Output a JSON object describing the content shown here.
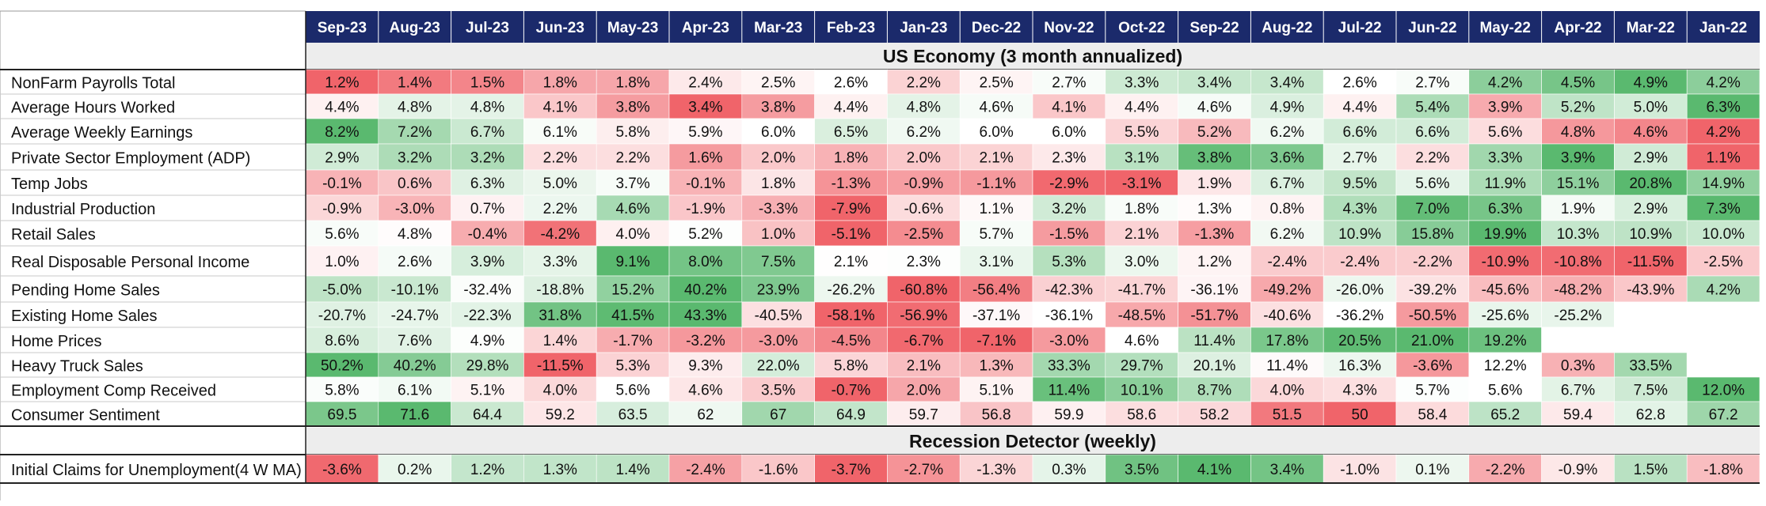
{
  "chart_data": {
    "type": "heatmap",
    "columns": [
      "Sep-23",
      "Aug-23",
      "Jul-23",
      "Jun-23",
      "May-23",
      "Apr-23",
      "Mar-23",
      "Feb-23",
      "Jan-23",
      "Dec-22",
      "Nov-22",
      "Oct-22",
      "Sep-22",
      "Aug-22",
      "Jul-22",
      "Jun-22",
      "May-22",
      "Apr-22",
      "Mar-22",
      "Jan-22"
    ],
    "sections": [
      {
        "title": "US Economy (3 month annualized)",
        "rows": [
          {
            "label": "NonFarm Payrolls Total",
            "values": [
              "1.2%",
              "1.4%",
              "1.5%",
              "1.8%",
              "1.8%",
              "2.4%",
              "2.5%",
              "2.6%",
              "2.2%",
              "2.5%",
              "2.7%",
              "3.3%",
              "3.4%",
              "3.4%",
              "2.6%",
              "2.7%",
              "4.2%",
              "4.5%",
              "4.9%",
              "4.2%"
            ]
          },
          {
            "label": "Average Hours Worked",
            "values": [
              "4.4%",
              "4.8%",
              "4.8%",
              "4.1%",
              "3.8%",
              "3.4%",
              "3.8%",
              "4.4%",
              "4.8%",
              "4.6%",
              "4.1%",
              "4.4%",
              "4.6%",
              "4.9%",
              "4.4%",
              "5.4%",
              "3.9%",
              "5.2%",
              "5.0%",
              "6.3%"
            ]
          },
          {
            "label": "Average Weekly Earnings",
            "values": [
              "8.2%",
              "7.2%",
              "6.7%",
              "6.1%",
              "5.8%",
              "5.9%",
              "6.0%",
              "6.5%",
              "6.2%",
              "6.0%",
              "6.0%",
              "5.5%",
              "5.2%",
              "6.2%",
              "6.6%",
              "6.6%",
              "5.6%",
              "4.8%",
              "4.6%",
              "4.2%"
            ]
          },
          {
            "label": "Private Sector Employment (ADP)",
            "values": [
              "2.9%",
              "3.2%",
              "3.2%",
              "2.2%",
              "2.2%",
              "1.6%",
              "2.0%",
              "1.8%",
              "2.0%",
              "2.1%",
              "2.3%",
              "3.1%",
              "3.8%",
              "3.6%",
              "2.7%",
              "2.2%",
              "3.3%",
              "3.9%",
              "2.9%",
              "1.1%"
            ]
          },
          {
            "label": "Temp Jobs",
            "values": [
              "-0.1%",
              "0.6%",
              "6.3%",
              "5.0%",
              "3.7%",
              "-0.1%",
              "1.8%",
              "-1.3%",
              "-0.9%",
              "-1.1%",
              "-2.9%",
              "-3.1%",
              "1.9%",
              "6.7%",
              "9.5%",
              "5.6%",
              "11.9%",
              "15.1%",
              "20.8%",
              "14.9%"
            ]
          },
          {
            "label": "Industrial Production",
            "values": [
              "-0.9%",
              "-3.0%",
              "0.7%",
              "2.2%",
              "4.6%",
              "-1.9%",
              "-3.3%",
              "-7.9%",
              "-0.6%",
              "1.1%",
              "3.2%",
              "1.8%",
              "1.3%",
              "0.8%",
              "4.3%",
              "7.0%",
              "6.3%",
              "1.9%",
              "2.9%",
              "7.3%"
            ]
          },
          {
            "label": "Retail Sales",
            "values": [
              "5.6%",
              "4.8%",
              "-0.4%",
              "-4.2%",
              "4.0%",
              "5.2%",
              "1.0%",
              "-5.1%",
              "-2.5%",
              "5.7%",
              "-1.5%",
              "2.1%",
              "-1.3%",
              "6.2%",
              "10.9%",
              "15.8%",
              "19.9%",
              "10.3%",
              "10.9%",
              "10.0%"
            ]
          },
          {
            "label": "Real Disposable Personal Income",
            "values": [
              "1.0%",
              "2.6%",
              "3.9%",
              "3.3%",
              "9.1%",
              "8.0%",
              "7.5%",
              "2.1%",
              "2.3%",
              "3.1%",
              "5.3%",
              "3.0%",
              "1.2%",
              "-2.4%",
              "-2.4%",
              "-2.2%",
              "-10.9%",
              "-10.8%",
              "-11.5%",
              "-2.5%"
            ]
          },
          {
            "label": "Pending Home Sales",
            "values": [
              "-5.0%",
              "-10.1%",
              "-32.4%",
              "-18.8%",
              "15.2%",
              "40.2%",
              "23.9%",
              "-26.2%",
              "-60.8%",
              "-56.4%",
              "-42.3%",
              "-41.7%",
              "-36.1%",
              "-49.2%",
              "-26.0%",
              "-39.2%",
              "-45.6%",
              "-48.2%",
              "-43.9%",
              "4.2%"
            ]
          },
          {
            "label": "Existing Home Sales",
            "values": [
              "-20.7%",
              "-24.7%",
              "-22.3%",
              "31.8%",
              "41.5%",
              "43.3%",
              "-40.5%",
              "-58.1%",
              "-56.9%",
              "-37.1%",
              "-36.1%",
              "-48.5%",
              "-51.7%",
              "-40.6%",
              "-36.2%",
              "-50.5%",
              "-25.6%",
              "-25.2%",
              "",
              ""
            ]
          },
          {
            "label": "Home Prices",
            "values": [
              "8.6%",
              "7.6%",
              "4.9%",
              "1.4%",
              "-1.7%",
              "-3.2%",
              "-3.0%",
              "-4.5%",
              "-6.7%",
              "-7.1%",
              "-3.0%",
              "4.6%",
              "11.4%",
              "17.8%",
              "20.5%",
              "21.0%",
              "19.2%",
              "",
              "",
              ""
            ]
          },
          {
            "label": "Heavy Truck Sales",
            "values": [
              "50.2%",
              "40.2%",
              "29.8%",
              "-11.5%",
              "5.3%",
              "9.3%",
              "22.0%",
              "5.8%",
              "2.1%",
              "1.3%",
              "33.3%",
              "29.7%",
              "20.1%",
              "11.4%",
              "16.3%",
              "-3.6%",
              "12.2%",
              "0.3%",
              "33.5%",
              ""
            ]
          },
          {
            "label": "Employment Comp Received",
            "values": [
              "5.8%",
              "6.1%",
              "5.1%",
              "4.0%",
              "5.6%",
              "4.6%",
              "3.5%",
              "-0.7%",
              "2.0%",
              "5.1%",
              "11.4%",
              "10.1%",
              "8.7%",
              "4.0%",
              "4.3%",
              "5.7%",
              "5.6%",
              "6.7%",
              "7.5%",
              "12.0%"
            ]
          },
          {
            "label": "Consumer Sentiment",
            "values": [
              "69.5",
              "71.6",
              "64.4",
              "59.2",
              "63.5",
              "62",
              "67",
              "64.9",
              "59.7",
              "56.8",
              "59.9",
              "58.6",
              "58.2",
              "51.5",
              "50",
              "58.4",
              "65.2",
              "59.4",
              "62.8",
              "67.2"
            ]
          }
        ]
      },
      {
        "title": "Recession Detector (weekly)",
        "rows": [
          {
            "label": "Initial Claims for Unemployment(4 W MA)",
            "values": [
              "-3.6%",
              "0.2%",
              "1.2%",
              "1.3%",
              "1.4%",
              "-2.4%",
              "-1.6%",
              "-3.7%",
              "-2.7%",
              "-1.3%",
              "0.3%",
              "3.5%",
              "4.1%",
              "3.4%",
              "-1.0%",
              "0.1%",
              "-2.2%",
              "-0.9%",
              "1.5%",
              "-1.8%"
            ]
          }
        ]
      }
    ],
    "colors": {
      "header_bg": "#1b2a6b",
      "header_text": "#ffffff",
      "section_bg": "#ededed",
      "high": "#5ab96f",
      "mid": "#ffffff",
      "low": "#f0646a"
    }
  }
}
